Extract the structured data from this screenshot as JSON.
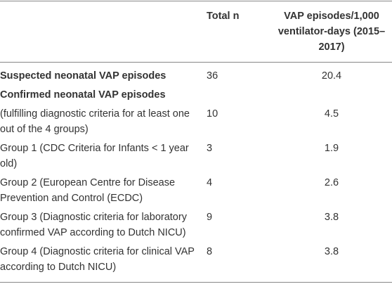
{
  "table": {
    "header": [
      "Total n",
      "VAP episodes/1,000 ventilator-days (2015–2017)"
    ],
    "rows": [
      {
        "label": "Suspected neonatal VAP episodes",
        "total": "36",
        "rate": "20.4"
      },
      {
        "label": "Confirmed neonatal VAP episodes"
      },
      {
        "label": "(fulfilling diagnostic criteria for at least one out of the 4 groups)",
        "total": "10",
        "rate": "4.5"
      },
      {
        "label": "Group 1 (CDC Criteria for Infants < 1 year old)",
        "total": "3",
        "rate": "1.9"
      },
      {
        "label": "Group 2 (European Centre for Disease Prevention and Control (ECDC)",
        "total": "4",
        "rate": "2.6"
      },
      {
        "label": "Group 3 (Diagnostic criteria for laboratory confirmed VAP according to Dutch NICU)",
        "total": "9",
        "rate": "3.8"
      },
      {
        "label": "Group 4 (Diagnostic criteria for clinical VAP according to Dutch NICU)",
        "total": "8",
        "rate": "3.8"
      }
    ]
  }
}
